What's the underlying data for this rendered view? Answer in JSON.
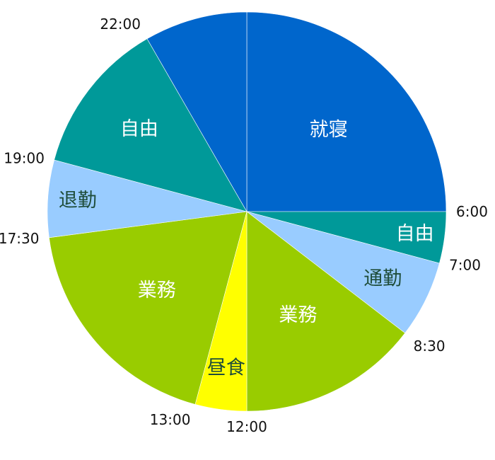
{
  "chart_data": {
    "type": "pie",
    "title": "",
    "start_time": "24:00",
    "direction": "clockwise",
    "slices": [
      {
        "label": "就寝",
        "start": "0:00",
        "end": "6:00",
        "hours": 6.0,
        "color": "#0066cc",
        "label_color": "#ffffff"
      },
      {
        "label": "自由",
        "start": "6:00",
        "end": "7:00",
        "hours": 1.0,
        "color": "#009999",
        "label_color": "#ffffff"
      },
      {
        "label": "通勤",
        "start": "7:00",
        "end": "8:30",
        "hours": 1.5,
        "color": "#99ccff",
        "label_color": "#1f4d3a"
      },
      {
        "label": "業務",
        "start": "8:30",
        "end": "12:00",
        "hours": 3.5,
        "color": "#99cc00",
        "label_color": "#ffffff"
      },
      {
        "label": "昼食",
        "start": "12:00",
        "end": "13:00",
        "hours": 1.0,
        "color": "#ffff00",
        "label_color": "#1f4d3a"
      },
      {
        "label": "業務",
        "start": "13:00",
        "end": "17:30",
        "hours": 4.5,
        "color": "#99cc00",
        "label_color": "#ffffff"
      },
      {
        "label": "退勤",
        "start": "17:30",
        "end": "19:00",
        "hours": 1.5,
        "color": "#99ccff",
        "label_color": "#1f4d3a"
      },
      {
        "label": "自由",
        "start": "19:00",
        "end": "22:00",
        "hours": 3.0,
        "color": "#009999",
        "label_color": "#ffffff"
      },
      {
        "label": "",
        "start": "22:00",
        "end": "24:00",
        "hours": 2.0,
        "color": "#0066cc",
        "label_color": "#ffffff"
      }
    ],
    "time_labels": [
      "6:00",
      "7:00",
      "8:30",
      "12:00",
      "13:00",
      "17:30",
      "19:00",
      "22:00"
    ],
    "legend": "none"
  }
}
